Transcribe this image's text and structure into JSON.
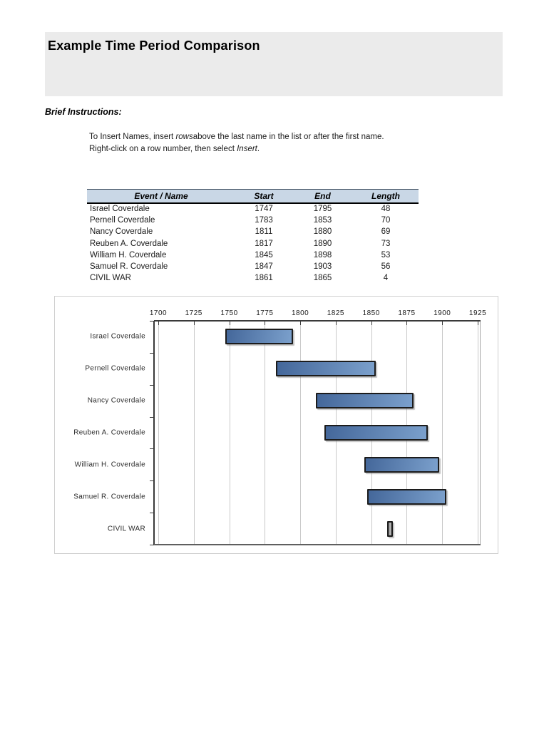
{
  "page": {
    "title": "Example Time Period Comparison",
    "instructions_heading": "Brief Instructions:",
    "instr1_pre": "To Insert Names, insert ",
    "instr1_italic": "rows",
    "instr1_post": "above the last name in the list or after the first name.",
    "instr2_pre": "Right-click on a row number, then select ",
    "instr2_italic": "Insert",
    "instr2_post": "."
  },
  "table": {
    "headers": [
      "Event / Name",
      "Start",
      "End",
      "Length"
    ],
    "header_bg": "#c9d7e6",
    "rows": [
      {
        "name": "Israel Coverdale",
        "start": "1747",
        "end": "1795",
        "length": "48"
      },
      {
        "name": "Pernell Coverdale",
        "start": "1783",
        "end": "1853",
        "length": "70"
      },
      {
        "name": "Nancy Coverdale",
        "start": "1811",
        "end": "1880",
        "length": "69"
      },
      {
        "name": "Reuben A. Coverdale",
        "start": "1817",
        "end": "1890",
        "length": "73"
      },
      {
        "name": "William H. Coverdale",
        "start": "1845",
        "end": "1898",
        "length": "53"
      },
      {
        "name": "Samuel R. Coverdale",
        "start": "1847",
        "end": "1903",
        "length": "56"
      },
      {
        "name": "CIVIL WAR",
        "start": "1861",
        "end": "1865",
        "length": "4"
      }
    ]
  },
  "chart_data": {
    "type": "bar",
    "orientation": "horizontal",
    "title": "",
    "xlabel": "",
    "ylabel": "",
    "x_ticks": [
      1700,
      1725,
      1750,
      1775,
      1800,
      1825,
      1850,
      1875,
      1900,
      1925
    ],
    "xlim": [
      1700,
      1925
    ],
    "domain": [
      1697,
      1927
    ],
    "grid": true,
    "legend": "none",
    "categories": [
      "Israel Coverdale",
      "Pernell Coverdale",
      "Nancy Coverdale",
      "Reuben A. Coverdale",
      "William H. Coverdale",
      "Samuel R. Coverdale",
      "CIVIL WAR"
    ],
    "bars": [
      {
        "label": "Israel Coverdale",
        "start": 1747,
        "end": 1795
      },
      {
        "label": "Pernell Coverdale",
        "start": 1783,
        "end": 1853
      },
      {
        "label": "Nancy Coverdale",
        "start": 1811,
        "end": 1880
      },
      {
        "label": "Reuben A. Coverdale",
        "start": 1817,
        "end": 1890
      },
      {
        "label": "William H. Coverdale",
        "start": 1845,
        "end": 1898
      },
      {
        "label": "Samuel R. Coverdale",
        "start": 1847,
        "end": 1903
      },
      {
        "label": "CIVIL WAR",
        "start": 1861,
        "end": 1865,
        "color": "gray"
      }
    ],
    "bar_gradient": [
      "#44679a",
      "#7ba0cc"
    ],
    "gray_gradient": [
      "#787878",
      "#bcbcbc",
      "#989898"
    ],
    "bar_border": "#1c1c1c"
  }
}
